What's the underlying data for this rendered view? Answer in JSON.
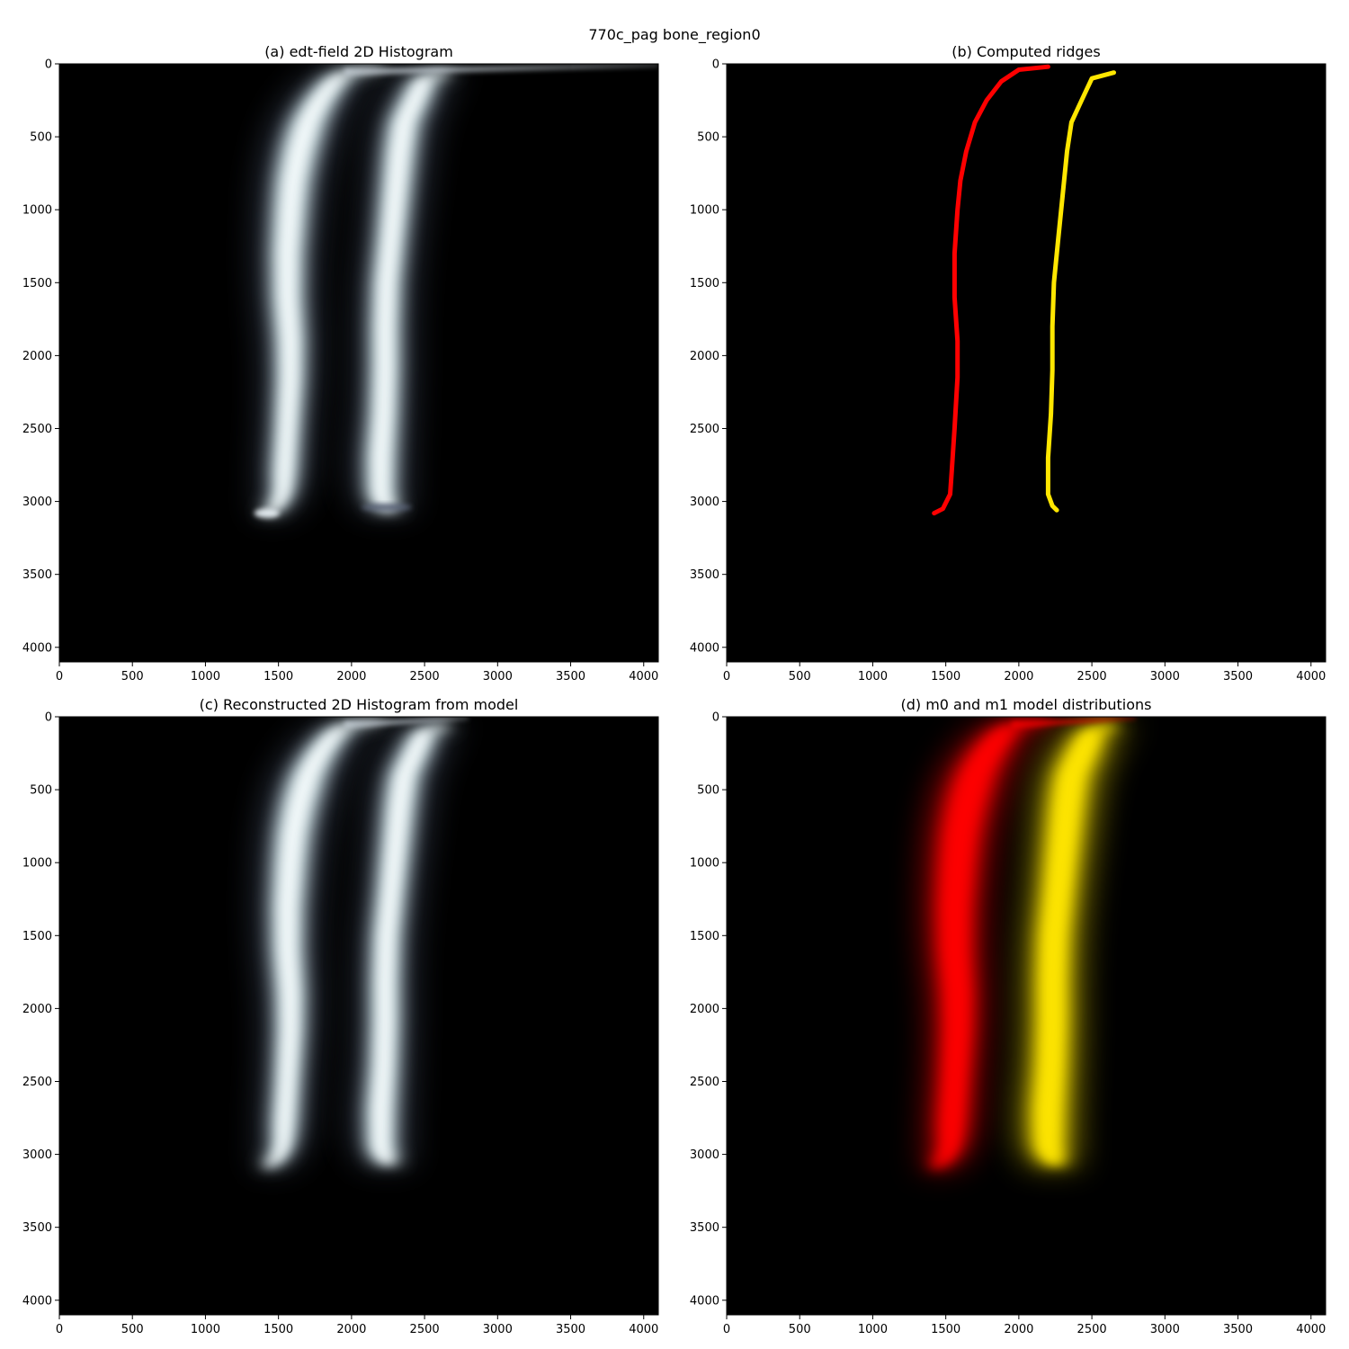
{
  "figure": {
    "suptitle": "770c_pag bone_region0"
  },
  "panels": [
    {
      "id": "a",
      "title": "(a) edt-field 2D Histogram",
      "kind": "histogram",
      "colormap": "bone",
      "has_top_streak": true,
      "has_bottom_blobs": true
    },
    {
      "id": "b",
      "title": "(b) Computed ridges",
      "kind": "ridges",
      "ridge_colors": [
        "#ff0000",
        "#ffe600"
      ]
    },
    {
      "id": "c",
      "title": "(c) Reconstructed 2D Histogram from model",
      "kind": "histogram",
      "colormap": "bone",
      "has_top_streak": true,
      "has_bottom_blobs": false
    },
    {
      "id": "d",
      "title": "(d) m0 and m1 model distributions",
      "kind": "model",
      "model_colors": [
        "#ff0000",
        "#ffe600"
      ]
    }
  ],
  "chart_data": {
    "type": "heatmap",
    "xlim": [
      0,
      4100
    ],
    "ylim": [
      4100,
      0
    ],
    "xticks": [
      "0",
      "500",
      "1000",
      "1500",
      "2000",
      "2500",
      "3000",
      "3500",
      "4000"
    ],
    "yticks": [
      "0",
      "500",
      "1000",
      "1500",
      "2000",
      "2500",
      "3000",
      "3500",
      "4000"
    ],
    "grid": false,
    "background": "#000000",
    "ridge0": [
      [
        2200,
        20
      ],
      [
        2000,
        40
      ],
      [
        1880,
        120
      ],
      [
        1780,
        250
      ],
      [
        1700,
        400
      ],
      [
        1640,
        600
      ],
      [
        1600,
        800
      ],
      [
        1580,
        1000
      ],
      [
        1560,
        1300
      ],
      [
        1560,
        1600
      ],
      [
        1580,
        1900
      ],
      [
        1580,
        2150
      ],
      [
        1560,
        2500
      ],
      [
        1540,
        2800
      ],
      [
        1530,
        2950
      ],
      [
        1480,
        3050
      ],
      [
        1420,
        3080
      ]
    ],
    "ridge1": [
      [
        2650,
        60
      ],
      [
        2500,
        100
      ],
      [
        2430,
        250
      ],
      [
        2360,
        400
      ],
      [
        2330,
        600
      ],
      [
        2300,
        900
      ],
      [
        2270,
        1200
      ],
      [
        2240,
        1500
      ],
      [
        2230,
        1800
      ],
      [
        2230,
        2100
      ],
      [
        2220,
        2400
      ],
      [
        2200,
        2700
      ],
      [
        2200,
        2950
      ],
      [
        2230,
        3030
      ],
      [
        2260,
        3060
      ]
    ],
    "ridge0_width": [
      [
        0,
        110
      ],
      [
        300,
        140
      ],
      [
        500,
        150
      ],
      [
        1000,
        140
      ],
      [
        1500,
        130
      ],
      [
        2000,
        120
      ],
      [
        2500,
        110
      ],
      [
        2800,
        110
      ],
      [
        3050,
        80
      ]
    ],
    "ridge1_width": [
      [
        0,
        110
      ],
      [
        300,
        130
      ],
      [
        600,
        130
      ],
      [
        1200,
        120
      ],
      [
        1800,
        120
      ],
      [
        2400,
        120
      ],
      [
        2700,
        125
      ],
      [
        3050,
        115
      ]
    ],
    "ridge_thickness": 45
  }
}
